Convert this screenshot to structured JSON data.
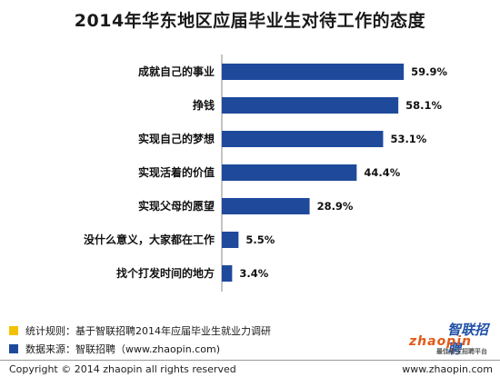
{
  "chart_data": {
    "type": "bar",
    "orientation": "horizontal",
    "title": "2014年华东地区应届毕业生对待工作的态度",
    "categories": [
      "成就自己的事业",
      "挣钱",
      "实现自己的梦想",
      "实现活着的价值",
      "实现父母的愿望",
      "没什么意义，大家都在工作",
      "找个打发时间的地方"
    ],
    "values": [
      59.9,
      58.1,
      53.1,
      44.4,
      28.9,
      5.5,
      3.4
    ],
    "value_labels": [
      "59.9%",
      "58.1%",
      "53.1%",
      "44.4%",
      "28.9%",
      "5.5%",
      "3.4%"
    ],
    "xlim": [
      0,
      70
    ],
    "grid": false,
    "bar_color": "#1f4a9c",
    "axis_color": "#888888"
  },
  "notes": [
    {
      "swatch_color": "#f2c200",
      "text": "统计规则：基于智联招聘2014年应届毕业生就业力调研"
    },
    {
      "swatch_color": "#1f4a9c",
      "text": "数据来源：智联招聘（www.zhaopin.com)"
    }
  ],
  "logo": {
    "main": "智联招聘",
    "sub": "zhaopin",
    "tag": "最佳雇主招聘平台"
  },
  "footer": {
    "copyright": "Copyright  ©  2014 zhaopin all rights reserved",
    "url": "www.zhaopin.com"
  }
}
